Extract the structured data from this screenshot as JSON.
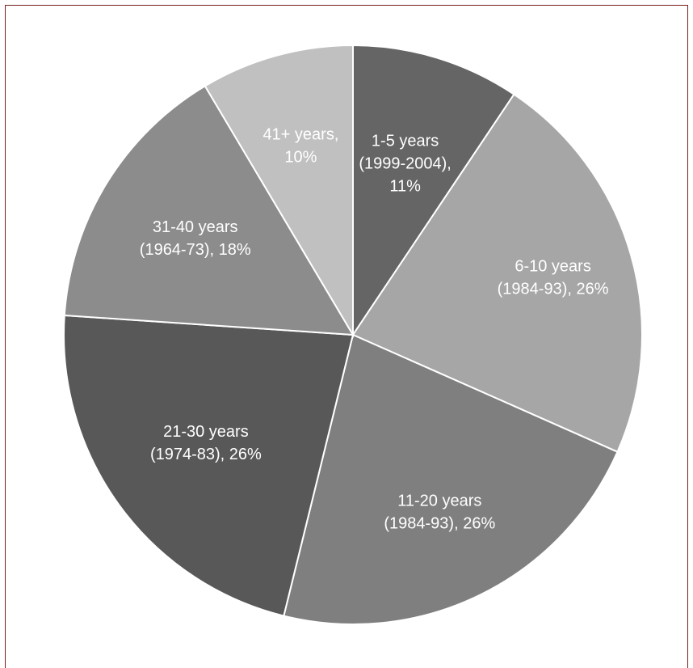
{
  "chart_data": {
    "type": "pie",
    "title": "",
    "start_angle_deg": 0,
    "direction": "clockwise",
    "slices": [
      {
        "label_lines": [
          "1-5 years",
          "(1999-2004),",
          "11%"
        ],
        "value": 11,
        "color": "#656565"
      },
      {
        "label_lines": [
          "6-10 years",
          "(1984-93), 26%"
        ],
        "value": 26,
        "color": "#a6a6a6"
      },
      {
        "label_lines": [
          "11-20 years",
          "(1984-93), 26%"
        ],
        "value": 26,
        "color": "#7f7f7f"
      },
      {
        "label_lines": [
          "21-30 years",
          "(1974-83), 26%"
        ],
        "value": 26,
        "color": "#585858"
      },
      {
        "label_lines": [
          "31-40 years",
          "(1964-73), 18%"
        ],
        "value": 18,
        "color": "#8c8c8c"
      },
      {
        "label_lines": [
          "41+ years,",
          "10%"
        ],
        "value": 10,
        "color": "#c0c0c0"
      }
    ],
    "legend": "none"
  }
}
